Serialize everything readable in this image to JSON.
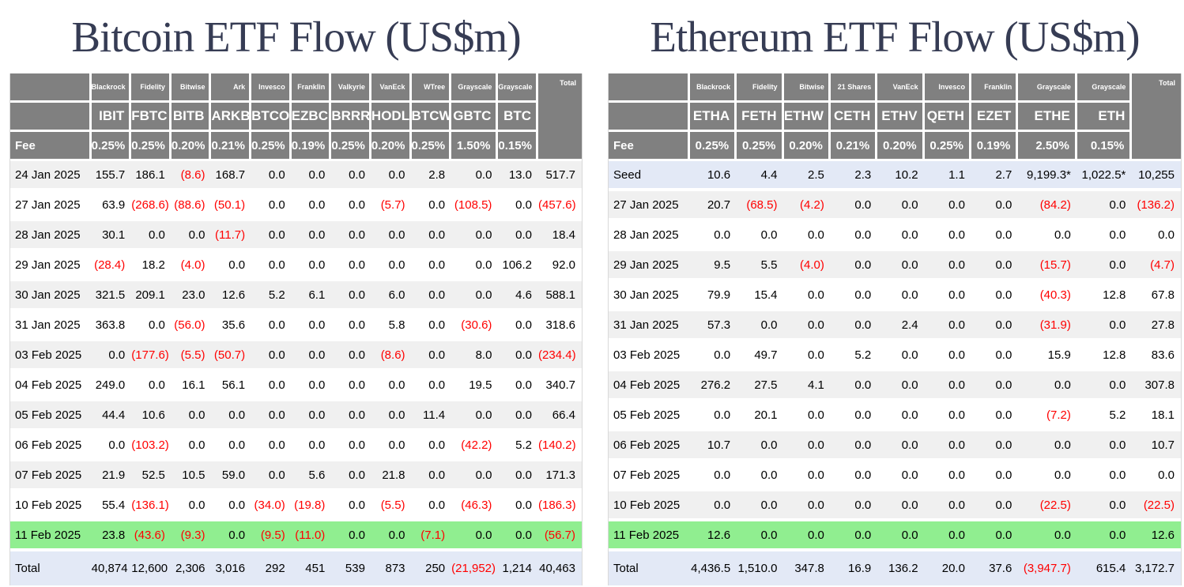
{
  "colors": {
    "header_bg": "#808080",
    "header_text": "#ffffff",
    "stripe_row": "#f0f0f0",
    "highlight_row_green": "#90ee90",
    "total_row_blue": "#e3e9f6",
    "negative_value": "#ff0000",
    "title_text": "#363c54"
  },
  "chart_data": [
    {
      "type": "table",
      "title": "Bitcoin ETF Flow (US$m)",
      "issuers": [
        "Blackrock",
        "Fidelity",
        "Bitwise",
        "Ark",
        "Invesco",
        "Franklin",
        "Valkyrie",
        "VanEck",
        "WTree",
        "Grayscale",
        "Grayscale"
      ],
      "tickers": [
        "IBIT",
        "FBTC",
        "BITB",
        "ARKB",
        "BTCO",
        "EZBC",
        "BRRR",
        "HODL",
        "BTCW",
        "GBTC",
        "BTC"
      ],
      "fee_label": "Fee",
      "fees": [
        "0.25%",
        "0.25%",
        "0.20%",
        "0.21%",
        "0.25%",
        "0.19%",
        "0.25%",
        "0.20%",
        "0.25%",
        "1.50%",
        "0.15%"
      ],
      "total_header": "Total",
      "rows": [
        {
          "label": "24 Jan 2025",
          "values": [
            "155.7",
            "186.1",
            "(8.6)",
            "168.7",
            "0.0",
            "0.0",
            "0.0",
            "0.0",
            "2.8",
            "0.0",
            "13.0",
            "517.7"
          ]
        },
        {
          "label": "27 Jan 2025",
          "values": [
            "63.9",
            "(268.6)",
            "(88.6)",
            "(50.1)",
            "0.0",
            "0.0",
            "0.0",
            "(5.7)",
            "0.0",
            "(108.5)",
            "0.0",
            "(457.6)"
          ]
        },
        {
          "label": "28 Jan 2025",
          "values": [
            "30.1",
            "0.0",
            "0.0",
            "(11.7)",
            "0.0",
            "0.0",
            "0.0",
            "0.0",
            "0.0",
            "0.0",
            "0.0",
            "18.4"
          ]
        },
        {
          "label": "29 Jan 2025",
          "values": [
            "(28.4)",
            "18.2",
            "(4.0)",
            "0.0",
            "0.0",
            "0.0",
            "0.0",
            "0.0",
            "0.0",
            "0.0",
            "106.2",
            "92.0"
          ]
        },
        {
          "label": "30 Jan 2025",
          "values": [
            "321.5",
            "209.1",
            "23.0",
            "12.6",
            "5.2",
            "6.1",
            "0.0",
            "6.0",
            "0.0",
            "0.0",
            "4.6",
            "588.1"
          ]
        },
        {
          "label": "31 Jan 2025",
          "values": [
            "363.8",
            "0.0",
            "(56.0)",
            "35.6",
            "0.0",
            "0.0",
            "0.0",
            "5.8",
            "0.0",
            "(30.6)",
            "0.0",
            "318.6"
          ]
        },
        {
          "label": "03 Feb 2025",
          "values": [
            "0.0",
            "(177.6)",
            "(5.5)",
            "(50.7)",
            "0.0",
            "0.0",
            "0.0",
            "(8.6)",
            "0.0",
            "8.0",
            "0.0",
            "(234.4)"
          ]
        },
        {
          "label": "04 Feb 2025",
          "values": [
            "249.0",
            "0.0",
            "16.1",
            "56.1",
            "0.0",
            "0.0",
            "0.0",
            "0.0",
            "0.0",
            "19.5",
            "0.0",
            "340.7"
          ]
        },
        {
          "label": "05 Feb 2025",
          "values": [
            "44.4",
            "10.6",
            "0.0",
            "0.0",
            "0.0",
            "0.0",
            "0.0",
            "0.0",
            "11.4",
            "0.0",
            "0.0",
            "66.4"
          ]
        },
        {
          "label": "06 Feb 2025",
          "values": [
            "0.0",
            "(103.2)",
            "0.0",
            "0.0",
            "0.0",
            "0.0",
            "0.0",
            "0.0",
            "0.0",
            "(42.2)",
            "5.2",
            "(140.2)"
          ]
        },
        {
          "label": "07 Feb 2025",
          "values": [
            "21.9",
            "52.5",
            "10.5",
            "59.0",
            "0.0",
            "5.6",
            "0.0",
            "21.8",
            "0.0",
            "0.0",
            "0.0",
            "171.3"
          ]
        },
        {
          "label": "10 Feb 2025",
          "values": [
            "55.4",
            "(136.1)",
            "0.0",
            "0.0",
            "(34.0)",
            "(19.8)",
            "0.0",
            "(5.5)",
            "0.0",
            "(46.3)",
            "0.0",
            "(186.3)"
          ]
        },
        {
          "label": "11 Feb 2025",
          "highlight": true,
          "values": [
            "23.8",
            "(43.6)",
            "(9.3)",
            "0.0",
            "(9.5)",
            "(11.0)",
            "0.0",
            "0.0",
            "(7.1)",
            "0.0",
            "0.0",
            "(56.7)"
          ]
        }
      ],
      "total_row": {
        "label": "Total",
        "values": [
          "40,874",
          "12,600",
          "2,306",
          "3,016",
          "292",
          "451",
          "539",
          "873",
          "250",
          "(21,952)",
          "1,214",
          "40,463"
        ]
      }
    },
    {
      "type": "table",
      "title": "Ethereum ETF Flow (US$m)",
      "issuers": [
        "Blackrock",
        "Fidelity",
        "Bitwise",
        "21 Shares",
        "VanEck",
        "Invesco",
        "Franklin",
        "Grayscale",
        "Grayscale"
      ],
      "tickers": [
        "ETHA",
        "FETH",
        "ETHW",
        "CETH",
        "ETHV",
        "QETH",
        "EZET",
        "ETHE",
        "ETH"
      ],
      "fee_label": "Fee",
      "fees": [
        "0.25%",
        "0.25%",
        "0.20%",
        "0.21%",
        "0.20%",
        "0.25%",
        "0.19%",
        "2.50%",
        "0.15%"
      ],
      "total_header": "Total",
      "rows": [
        {
          "label": "Seed",
          "seed": true,
          "values": [
            "10.6",
            "4.4",
            "2.5",
            "2.3",
            "10.2",
            "1.1",
            "2.7",
            "9,199.3*",
            "1,022.5*",
            "10,255"
          ]
        },
        {
          "label": "27 Jan 2025",
          "values": [
            "20.7",
            "(68.5)",
            "(4.2)",
            "0.0",
            "0.0",
            "0.0",
            "0.0",
            "(84.2)",
            "0.0",
            "(136.2)"
          ]
        },
        {
          "label": "28 Jan 2025",
          "values": [
            "0.0",
            "0.0",
            "0.0",
            "0.0",
            "0.0",
            "0.0",
            "0.0",
            "0.0",
            "0.0",
            "0.0"
          ]
        },
        {
          "label": "29 Jan 2025",
          "values": [
            "9.5",
            "5.5",
            "(4.0)",
            "0.0",
            "0.0",
            "0.0",
            "0.0",
            "(15.7)",
            "0.0",
            "(4.7)"
          ]
        },
        {
          "label": "30 Jan 2025",
          "values": [
            "79.9",
            "15.4",
            "0.0",
            "0.0",
            "0.0",
            "0.0",
            "0.0",
            "(40.3)",
            "12.8",
            "67.8"
          ]
        },
        {
          "label": "31 Jan 2025",
          "values": [
            "57.3",
            "0.0",
            "0.0",
            "0.0",
            "2.4",
            "0.0",
            "0.0",
            "(31.9)",
            "0.0",
            "27.8"
          ]
        },
        {
          "label": "03 Feb 2025",
          "values": [
            "0.0",
            "49.7",
            "0.0",
            "5.2",
            "0.0",
            "0.0",
            "0.0",
            "15.9",
            "12.8",
            "83.6"
          ]
        },
        {
          "label": "04 Feb 2025",
          "values": [
            "276.2",
            "27.5",
            "4.1",
            "0.0",
            "0.0",
            "0.0",
            "0.0",
            "0.0",
            "0.0",
            "307.8"
          ]
        },
        {
          "label": "05 Feb 2025",
          "values": [
            "0.0",
            "20.1",
            "0.0",
            "0.0",
            "0.0",
            "0.0",
            "0.0",
            "(7.2)",
            "5.2",
            "18.1"
          ]
        },
        {
          "label": "06 Feb 2025",
          "values": [
            "10.7",
            "0.0",
            "0.0",
            "0.0",
            "0.0",
            "0.0",
            "0.0",
            "0.0",
            "0.0",
            "10.7"
          ]
        },
        {
          "label": "07 Feb 2025",
          "values": [
            "0.0",
            "0.0",
            "0.0",
            "0.0",
            "0.0",
            "0.0",
            "0.0",
            "0.0",
            "0.0",
            "0.0"
          ]
        },
        {
          "label": "10 Feb 2025",
          "values": [
            "0.0",
            "0.0",
            "0.0",
            "0.0",
            "0.0",
            "0.0",
            "0.0",
            "(22.5)",
            "0.0",
            "(22.5)"
          ]
        },
        {
          "label": "11 Feb 2025",
          "highlight": true,
          "values": [
            "12.6",
            "0.0",
            "0.0",
            "0.0",
            "0.0",
            "0.0",
            "0.0",
            "0.0",
            "0.0",
            "12.6"
          ]
        }
      ],
      "total_row": {
        "label": "Total",
        "values": [
          "4,436.5",
          "1,510.0",
          "347.8",
          "16.9",
          "136.2",
          "20.0",
          "37.6",
          "(3,947.7)",
          "615.4",
          "3,172.7"
        ]
      }
    }
  ]
}
